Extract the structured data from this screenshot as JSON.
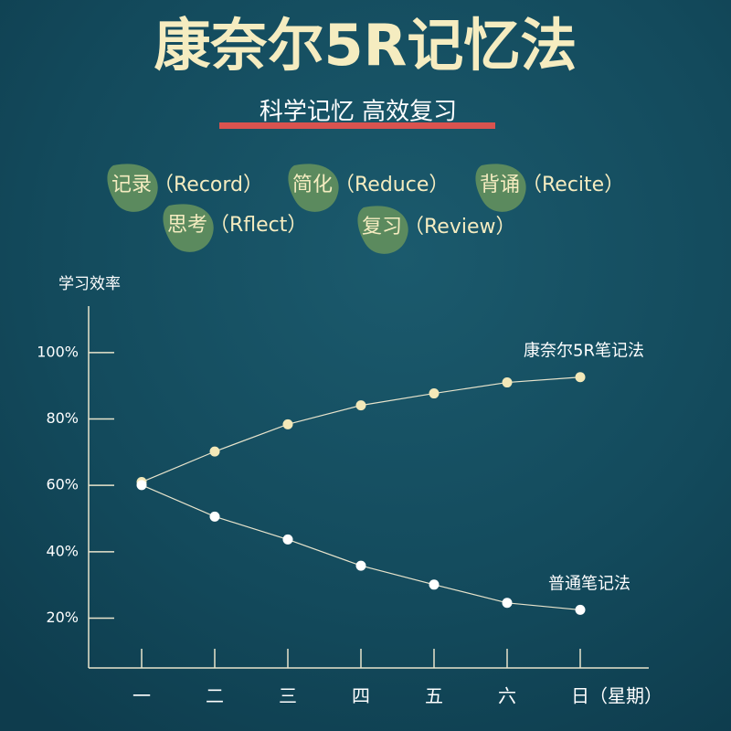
{
  "chart_data": {
    "type": "line",
    "title": "康奈尔5R记忆法",
    "subtitle": "科学记忆  高效复习",
    "y_label": "学习效率",
    "x_label": "（星期）",
    "categories": [
      "一",
      "二",
      "三",
      "四",
      "五",
      "六",
      "日"
    ],
    "series": [
      {
        "name": "康奈尔5R笔记法",
        "color": "#f3e8b8",
        "values": [
          61,
          70.2,
          78.4,
          84.1,
          87.7,
          91,
          92.6
        ]
      },
      {
        "name": "普通笔记法",
        "color": "#ffffff",
        "values": [
          60.1,
          50.6,
          43.7,
          35.8,
          30.1,
          24.6,
          22.5
        ]
      }
    ],
    "ylim": [
      5,
      114
    ],
    "yticks": [
      {
        "value": 20,
        "label": "20%"
      },
      {
        "value": 40,
        "label": "40%"
      },
      {
        "value": 60,
        "label": "60%"
      },
      {
        "value": 80,
        "label": "80%"
      },
      {
        "value": 100,
        "label": "100%"
      }
    ],
    "grid": false
  },
  "tags": [
    {
      "key": "记录",
      "text": "（Record）"
    },
    {
      "key": "简化",
      "text": "（Reduce）"
    },
    {
      "key": "背诵",
      "text": "（Recite）"
    },
    {
      "key": "思考",
      "text": "（Rflect）"
    },
    {
      "key": "复习",
      "text": "（Review）"
    }
  ]
}
